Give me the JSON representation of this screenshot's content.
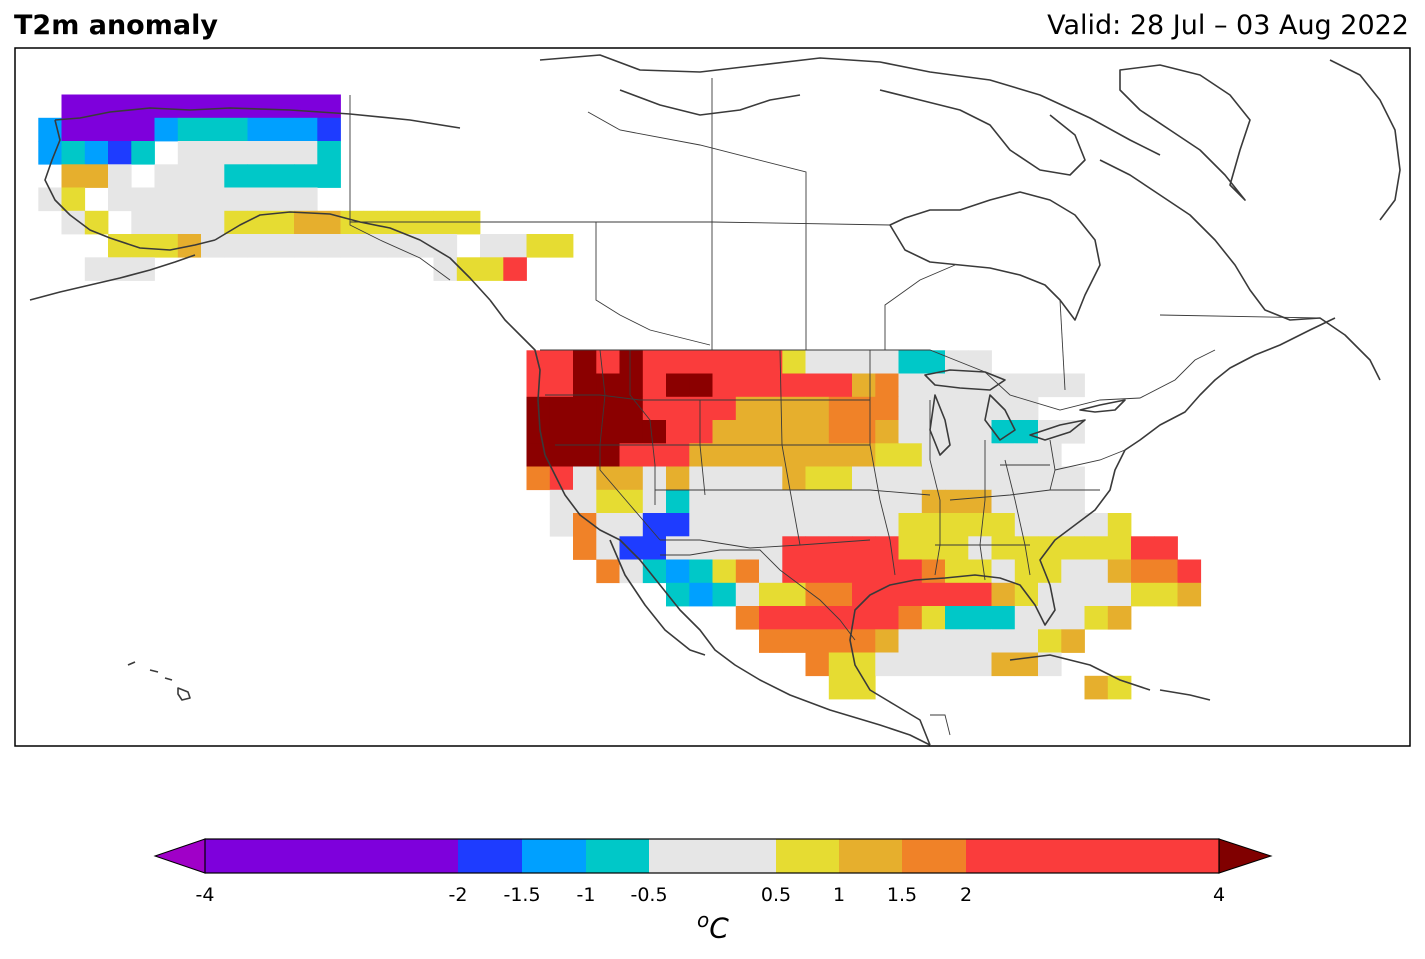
{
  "header": {
    "title": "T2m anomaly",
    "valid": "Valid: 28 Jul – 03 Aug 2022"
  },
  "colorbar": {
    "unit_base": "C",
    "unit_sup": "o",
    "ticks": [
      "-4",
      "-2",
      "-1.5",
      "-1",
      "-0.5",
      "0.5",
      "1",
      "1.5",
      "2",
      "4"
    ],
    "bins": [
      {
        "from": -4,
        "to": -2,
        "color": "#7e00dc"
      },
      {
        "from": -2,
        "to": -1.5,
        "color": "#1e3cff"
      },
      {
        "from": -1.5,
        "to": -1,
        "color": "#00a0ff"
      },
      {
        "from": -1,
        "to": -0.5,
        "color": "#00c8c8"
      },
      {
        "from": -0.5,
        "to": 0.5,
        "color": "#e6e6e6"
      },
      {
        "from": 0.5,
        "to": 1,
        "color": "#e6dc32"
      },
      {
        "from": 1,
        "to": 1.5,
        "color": "#e6af2d"
      },
      {
        "from": 1.5,
        "to": 2,
        "color": "#f08228"
      },
      {
        "from": 2,
        "to": 4,
        "color": "#fa3c3c"
      }
    ],
    "extend_low_color": "#a000c8",
    "extend_high_color": "#800000"
  },
  "anomaly_legend": {
    "V": "#7e00dc",
    "B": "#1e3cff",
    "L": "#00a0ff",
    "C": "#00c8c8",
    "G": "#e6e6e6",
    "Y": "#e6dc32",
    "A": "#e6af2d",
    "O": "#f08228",
    "R": "#fa3c3c",
    "D": "#8b0000"
  }
}
